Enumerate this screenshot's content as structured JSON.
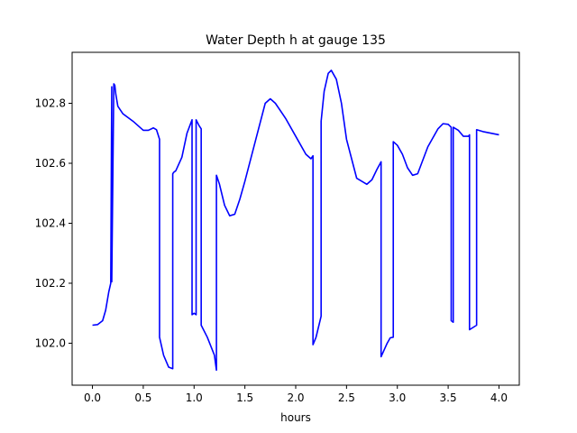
{
  "chart_data": {
    "type": "line",
    "title": "Water Depth h at gauge 135",
    "xlabel": "hours",
    "ylabel": "",
    "xlim": [
      -0.2,
      4.2
    ],
    "ylim": [
      101.86,
      102.97
    ],
    "grid": false,
    "xticks": [
      0.0,
      0.5,
      1.0,
      1.5,
      2.0,
      2.5,
      3.0,
      3.5,
      4.0
    ],
    "xtick_labels": [
      "0.0",
      "0.5",
      "1.0",
      "1.5",
      "2.0",
      "2.5",
      "3.0",
      "3.5",
      "4.0"
    ],
    "yticks": [
      102.0,
      102.2,
      102.4,
      102.6,
      102.8
    ],
    "ytick_labels": [
      "102.0",
      "102.2",
      "102.4",
      "102.6",
      "102.8"
    ],
    "series": [
      {
        "color": "#0000ff",
        "x": [
          0.0,
          0.05,
          0.1,
          0.13,
          0.16,
          0.18,
          0.19,
          0.19,
          0.21,
          0.22,
          0.23,
          0.25,
          0.3,
          0.4,
          0.5,
          0.55,
          0.6,
          0.63,
          0.66,
          0.66,
          0.7,
          0.75,
          0.79,
          0.79,
          0.8,
          0.82,
          0.88,
          0.93,
          0.98,
          0.98,
          1.0,
          1.02,
          1.02,
          1.05,
          1.07,
          1.07,
          1.13,
          1.2,
          1.22,
          1.22,
          1.25,
          1.3,
          1.35,
          1.4,
          1.45,
          1.5,
          1.6,
          1.7,
          1.75,
          1.8,
          1.9,
          2.0,
          2.1,
          2.15,
          2.17,
          2.17,
          2.2,
          2.25,
          2.25,
          2.28,
          2.32,
          2.35,
          2.4,
          2.45,
          2.5,
          2.6,
          2.7,
          2.75,
          2.8,
          2.84,
          2.84,
          2.9,
          2.93,
          2.96,
          2.96,
          3.0,
          3.05,
          3.1,
          3.15,
          3.2,
          3.3,
          3.4,
          3.45,
          3.5,
          3.53,
          3.53,
          3.55,
          3.55,
          3.6,
          3.65,
          3.7,
          3.71,
          3.71,
          3.78,
          3.78,
          3.85,
          4.0
        ],
        "y": [
          102.06,
          102.062,
          102.075,
          102.11,
          102.17,
          102.2,
          102.855,
          102.205,
          102.865,
          102.86,
          102.83,
          102.79,
          102.765,
          102.74,
          102.71,
          102.71,
          102.718,
          102.712,
          102.68,
          102.02,
          101.96,
          101.92,
          101.915,
          102.565,
          102.57,
          102.575,
          102.62,
          102.7,
          102.745,
          102.095,
          102.1,
          102.095,
          102.745,
          102.725,
          102.715,
          102.06,
          102.02,
          101.96,
          101.91,
          102.56,
          102.53,
          102.46,
          102.425,
          102.43,
          102.48,
          102.54,
          102.67,
          102.8,
          102.815,
          102.8,
          102.75,
          102.69,
          102.63,
          102.615,
          102.625,
          101.995,
          102.02,
          102.09,
          102.74,
          102.84,
          102.9,
          102.91,
          102.88,
          102.8,
          102.68,
          102.55,
          102.53,
          102.545,
          102.58,
          102.605,
          101.955,
          102.0,
          102.018,
          102.02,
          102.672,
          102.66,
          102.63,
          102.585,
          102.56,
          102.565,
          102.655,
          102.715,
          102.732,
          102.73,
          102.72,
          102.075,
          102.07,
          102.72,
          102.71,
          102.69,
          102.69,
          102.695,
          102.045,
          102.06,
          102.712,
          102.705,
          102.695
        ]
      }
    ]
  }
}
